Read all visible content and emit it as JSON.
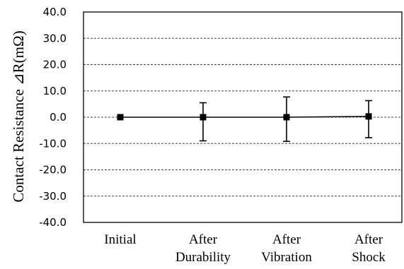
{
  "chart_data": {
    "type": "line",
    "categories": [
      "Initial",
      "After Durability",
      "After Vibration",
      "After Shock"
    ],
    "category_lines": [
      [
        "Initial"
      ],
      [
        "After",
        "Durability"
      ],
      [
        "After",
        "Vibration"
      ],
      [
        "After",
        "Shock"
      ]
    ],
    "series": [
      {
        "values": [
          0.0,
          0.0,
          0.0,
          0.3
        ],
        "error_high": [
          0.0,
          5.5,
          7.7,
          6.3
        ],
        "error_low": [
          0.0,
          -9.0,
          -9.2,
          -7.8
        ]
      }
    ],
    "ylabel": "Contact Resistance ⊿R(mΩ)",
    "ylim": [
      -40.0,
      40.0
    ],
    "yticks": [
      "40.0",
      "30.0",
      "20.0",
      "10.0",
      "0.0",
      "-10.0",
      "-20.0",
      "-30.0",
      "-40.0"
    ],
    "grid": true,
    "grid_style": "dashed",
    "colors": {
      "line": "#000000",
      "marker": "#000000",
      "grid": "#444444",
      "axis": "#000000"
    }
  }
}
